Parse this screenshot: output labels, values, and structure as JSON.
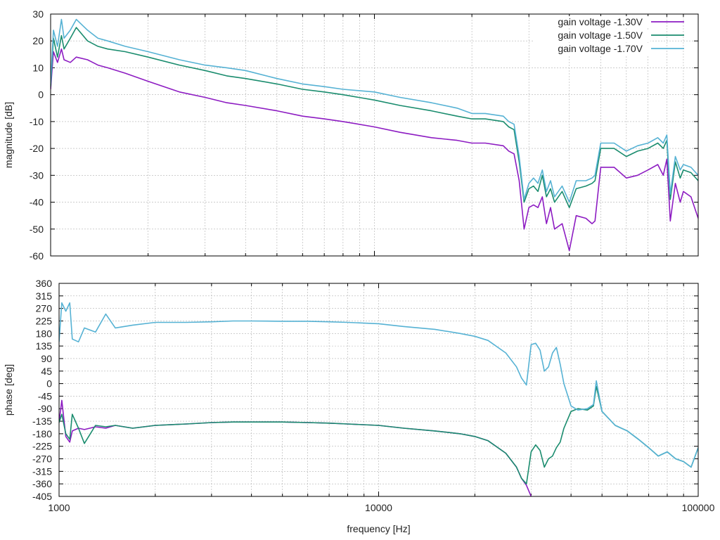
{
  "chart_data": [
    {
      "type": "line",
      "id": "magnitude",
      "xlabel": "",
      "ylabel": "magnitude [dB]",
      "xscale": "log",
      "xlim": [
        1000,
        100000
      ],
      "ylim": [
        -60,
        30
      ],
      "yticks": [
        30,
        20,
        10,
        0,
        -10,
        -20,
        -30,
        -40,
        -50,
        -60
      ],
      "xticks": [
        1000,
        10000,
        100000
      ],
      "grid": true,
      "legend_position": "top-right",
      "series": [
        {
          "name": "gain voltage -1.30V",
          "color": "#8d1cc2",
          "x": [
            1000,
            1020,
            1050,
            1080,
            1100,
            1150,
            1200,
            1300,
            1400,
            1500,
            1700,
            2000,
            2500,
            3000,
            3500,
            4000,
            5000,
            6000,
            7000,
            8000,
            10000,
            12000,
            15000,
            18000,
            20000,
            22000,
            25000,
            26000,
            27000,
            28000,
            29000,
            30000,
            31000,
            32000,
            33000,
            34000,
            35000,
            36000,
            38000,
            40000,
            42000,
            45000,
            47000,
            48000,
            50000,
            55000,
            60000,
            65000,
            70000,
            75000,
            78000,
            80000,
            82000,
            85000,
            88000,
            90000,
            95000,
            100000
          ],
          "y": [
            2,
            16,
            12,
            17,
            13,
            12,
            14,
            13,
            11,
            10,
            8,
            5,
            1,
            -1,
            -3,
            -4,
            -6,
            -8,
            -9,
            -10,
            -12,
            -14,
            -16,
            -17,
            -18,
            -18,
            -19,
            -21,
            -22,
            -32,
            -50,
            -42,
            -41,
            -42,
            -38,
            -48,
            -42,
            -50,
            -48,
            -58,
            -45,
            -46,
            -48,
            -47,
            -27,
            -27,
            -31,
            -30,
            -28,
            -26,
            -30,
            -24,
            -47,
            -33,
            -40,
            -36,
            -38,
            -46
          ]
        },
        {
          "name": "gain voltage -1.50V",
          "color": "#1a8c6e",
          "x": [
            1000,
            1020,
            1050,
            1080,
            1100,
            1150,
            1200,
            1300,
            1400,
            1500,
            1700,
            2000,
            2500,
            3000,
            3500,
            4000,
            5000,
            6000,
            7000,
            8000,
            10000,
            12000,
            15000,
            18000,
            20000,
            22000,
            25000,
            26000,
            27000,
            28000,
            29000,
            30000,
            31000,
            32000,
            33000,
            34000,
            35000,
            36000,
            38000,
            40000,
            42000,
            45000,
            47000,
            48000,
            50000,
            55000,
            60000,
            65000,
            70000,
            75000,
            78000,
            80000,
            82000,
            85000,
            88000,
            90000,
            95000,
            100000
          ],
          "y": [
            3,
            21,
            14,
            22,
            17,
            21,
            25,
            20,
            18,
            17,
            16,
            14,
            11,
            9,
            7,
            6,
            4,
            2,
            1,
            0,
            -2,
            -4,
            -6,
            -8,
            -9,
            -9,
            -10,
            -12,
            -13,
            -25,
            -40,
            -35,
            -34,
            -36,
            -30,
            -38,
            -35,
            -40,
            -36,
            -42,
            -35,
            -34,
            -33,
            -32,
            -20,
            -20,
            -23,
            -21,
            -20,
            -18,
            -20,
            -17,
            -39,
            -25,
            -31,
            -28,
            -29,
            -32
          ]
        },
        {
          "name": "gain voltage -1.70V",
          "color": "#56b2d4",
          "x": [
            1000,
            1020,
            1050,
            1080,
            1100,
            1150,
            1200,
            1300,
            1400,
            1500,
            1700,
            2000,
            2500,
            3000,
            3500,
            4000,
            5000,
            6000,
            7000,
            8000,
            10000,
            12000,
            15000,
            18000,
            20000,
            22000,
            25000,
            26000,
            27000,
            28000,
            29000,
            30000,
            31000,
            32000,
            33000,
            34000,
            35000,
            36000,
            38000,
            40000,
            42000,
            45000,
            47000,
            48000,
            50000,
            55000,
            60000,
            65000,
            70000,
            75000,
            78000,
            80000,
            82000,
            85000,
            88000,
            90000,
            95000,
            100000
          ],
          "y": [
            4,
            24,
            18,
            28,
            21,
            24,
            28,
            24,
            21,
            20,
            18,
            16,
            13,
            11,
            10,
            9,
            6,
            4,
            3,
            2,
            1,
            -1,
            -3,
            -5,
            -7,
            -7,
            -8,
            -10,
            -11,
            -23,
            -39,
            -33,
            -31,
            -33,
            -28,
            -36,
            -32,
            -38,
            -34,
            -40,
            -32,
            -32,
            -31,
            -30,
            -18,
            -18,
            -21,
            -19,
            -18,
            -16,
            -18,
            -15,
            -37,
            -23,
            -28,
            -26,
            -27,
            -30
          ]
        }
      ]
    },
    {
      "type": "line",
      "id": "phase",
      "xlabel": "frequency [Hz]",
      "ylabel": "phase [deg]",
      "xscale": "log",
      "xlim": [
        1000,
        100000
      ],
      "ylim": [
        -405,
        360
      ],
      "yticks": [
        360,
        315,
        270,
        225,
        180,
        135,
        90,
        45,
        0,
        -45,
        -90,
        -135,
        -180,
        -225,
        -270,
        -315,
        -360,
        -405
      ],
      "xticks": [
        1000,
        10000,
        100000
      ],
      "grid": true,
      "series": [
        {
          "name": "gain voltage -1.30V",
          "color": "#8d1cc2",
          "x": [
            1000,
            1020,
            1050,
            1080,
            1100,
            1150,
            1200,
            1300,
            1400,
            1500,
            1700,
            2000,
            2500,
            3000,
            3500,
            4000,
            5000,
            6000,
            7000,
            8000,
            10000,
            12000,
            15000,
            18000,
            20000,
            22000,
            25000,
            27000,
            28000,
            29000,
            30000
          ],
          "y": [
            -140,
            -60,
            -190,
            -210,
            -170,
            -160,
            -165,
            -155,
            -160,
            -150,
            -160,
            -150,
            -145,
            -140,
            -138,
            -138,
            -138,
            -140,
            -142,
            -145,
            -150,
            -160,
            -170,
            -180,
            -190,
            -205,
            -250,
            -300,
            -340,
            -365,
            -405
          ]
        },
        {
          "name": "gain voltage -1.50V",
          "color": "#1a8c6e",
          "x": [
            1000,
            1020,
            1050,
            1080,
            1100,
            1150,
            1200,
            1300,
            1400,
            1500,
            1700,
            2000,
            2500,
            3000,
            3500,
            4000,
            5000,
            6000,
            7000,
            8000,
            10000,
            12000,
            15000,
            18000,
            20000,
            22000,
            25000,
            27000,
            28000,
            29000,
            30000,
            31000,
            32000,
            33000,
            34000,
            35000,
            36000,
            37000,
            38000,
            40000,
            42000,
            45000,
            47000,
            48000,
            50000,
            55000,
            60000,
            65000,
            70000,
            75000,
            80000,
            85000,
            90000,
            95000,
            100000
          ],
          "y": [
            -140,
            -110,
            -180,
            -200,
            -110,
            -160,
            -215,
            -150,
            -155,
            -150,
            -160,
            -150,
            -145,
            -140,
            -138,
            -138,
            -138,
            -140,
            -142,
            -145,
            -150,
            -160,
            -170,
            -180,
            -190,
            -205,
            -250,
            -300,
            -340,
            -360,
            -245,
            -220,
            -240,
            -300,
            -270,
            -260,
            -230,
            -210,
            -160,
            -100,
            -90,
            -95,
            -80,
            -10,
            -100,
            -150,
            -170,
            -200,
            -230,
            -260,
            -245,
            -270,
            -280,
            -300,
            -230
          ]
        },
        {
          "name": "gain voltage -1.70V",
          "color": "#56b2d4",
          "x": [
            1000,
            1020,
            1050,
            1080,
            1100,
            1150,
            1200,
            1300,
            1400,
            1500,
            1700,
            2000,
            2500,
            3000,
            3500,
            4000,
            5000,
            6000,
            7000,
            8000,
            10000,
            12000,
            15000,
            18000,
            20000,
            22000,
            25000,
            27000,
            28000,
            29000,
            30000,
            31000,
            32000,
            33000,
            34000,
            35000,
            36000,
            37000,
            38000,
            40000,
            42000,
            45000,
            47000,
            48000,
            50000,
            55000,
            60000,
            65000,
            70000,
            75000,
            80000,
            85000,
            90000,
            95000,
            100000
          ],
          "y": [
            150,
            290,
            260,
            290,
            160,
            150,
            200,
            185,
            250,
            200,
            210,
            220,
            220,
            222,
            225,
            225,
            224,
            224,
            222,
            220,
            215,
            205,
            195,
            180,
            170,
            155,
            110,
            60,
            20,
            -5,
            140,
            145,
            120,
            45,
            60,
            110,
            130,
            70,
            0,
            -80,
            -95,
            -90,
            -75,
            10,
            -100,
            -150,
            -170,
            -200,
            -230,
            -260,
            -245,
            -270,
            -280,
            -300,
            -230
          ]
        }
      ]
    }
  ]
}
